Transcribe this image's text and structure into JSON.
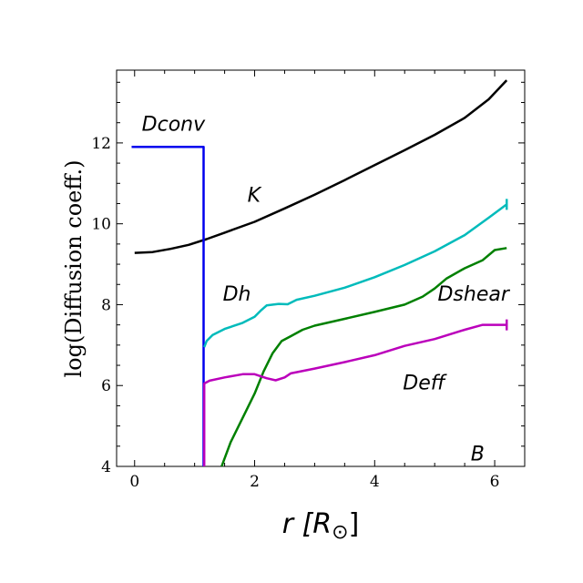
{
  "chart_data": {
    "type": "line",
    "title": "",
    "xlabel": "r [R",
    "xlabel_subscript": "⊙",
    "xlabel_close": "]",
    "ylabel": "log(Diffusion coeff.)",
    "xlim": [
      -0.3,
      6.5
    ],
    "ylim": [
      4,
      13.8
    ],
    "x_ticks": [
      0,
      2,
      4,
      6
    ],
    "x_tick_labels": [
      "0",
      "2",
      "4",
      "6"
    ],
    "y_ticks": [
      4,
      6,
      8,
      10,
      12
    ],
    "y_tick_labels": [
      "4",
      "6",
      "8",
      "10",
      "12"
    ],
    "grid": false,
    "legend": "none",
    "annotations": [
      {
        "text": "Dconv",
        "x": 0.12,
        "y": 12.3
      },
      {
        "text": "K",
        "x": 1.88,
        "y": 10.55
      },
      {
        "text": "Dh",
        "x": 1.47,
        "y": 8.1
      },
      {
        "text": "Dshear",
        "x": 5.05,
        "y": 8.1
      },
      {
        "text": "Deff",
        "x": 4.47,
        "y": 5.9
      },
      {
        "text": "B",
        "x": 5.6,
        "y": 4.15
      }
    ],
    "series": [
      {
        "name": "K",
        "color": "#000000",
        "points": [
          [
            0,
            9.28
          ],
          [
            0.3,
            9.3
          ],
          [
            0.6,
            9.38
          ],
          [
            0.9,
            9.48
          ],
          [
            1.2,
            9.62
          ],
          [
            1.5,
            9.78
          ],
          [
            2.0,
            10.05
          ],
          [
            2.5,
            10.38
          ],
          [
            3.0,
            10.72
          ],
          [
            3.5,
            11.08
          ],
          [
            4.0,
            11.45
          ],
          [
            4.5,
            11.82
          ],
          [
            5.0,
            12.2
          ],
          [
            5.5,
            12.62
          ],
          [
            5.9,
            13.08
          ],
          [
            6.2,
            13.55
          ]
        ]
      },
      {
        "name": "Dconv",
        "color": "#0000ee",
        "points": [
          [
            -0.05,
            11.9
          ],
          [
            1.15,
            11.9
          ],
          [
            1.15,
            7.05
          ],
          [
            1.15,
            4.0
          ]
        ]
      },
      {
        "name": "Dh",
        "color": "#00bbbb",
        "points": [
          [
            1.16,
            6.95
          ],
          [
            1.2,
            7.1
          ],
          [
            1.3,
            7.25
          ],
          [
            1.5,
            7.4
          ],
          [
            1.8,
            7.55
          ],
          [
            2.0,
            7.7
          ],
          [
            2.1,
            7.85
          ],
          [
            2.2,
            7.98
          ],
          [
            2.4,
            8.02
          ],
          [
            2.55,
            8.01
          ],
          [
            2.7,
            8.12
          ],
          [
            3.0,
            8.22
          ],
          [
            3.5,
            8.42
          ],
          [
            4.0,
            8.68
          ],
          [
            4.5,
            8.98
          ],
          [
            5.0,
            9.32
          ],
          [
            5.5,
            9.72
          ],
          [
            5.9,
            10.15
          ],
          [
            6.2,
            10.48
          ]
        ]
      },
      {
        "name": "Dshear",
        "color": "#008000",
        "points": [
          [
            1.45,
            4.0
          ],
          [
            1.6,
            4.6
          ],
          [
            1.8,
            5.2
          ],
          [
            2.0,
            5.8
          ],
          [
            2.15,
            6.35
          ],
          [
            2.3,
            6.8
          ],
          [
            2.45,
            7.1
          ],
          [
            2.6,
            7.22
          ],
          [
            2.8,
            7.38
          ],
          [
            3.0,
            7.48
          ],
          [
            3.5,
            7.65
          ],
          [
            4.0,
            7.82
          ],
          [
            4.5,
            8.0
          ],
          [
            4.8,
            8.2
          ],
          [
            5.0,
            8.4
          ],
          [
            5.2,
            8.65
          ],
          [
            5.5,
            8.9
          ],
          [
            5.8,
            9.1
          ],
          [
            6.0,
            9.35
          ],
          [
            6.2,
            9.4
          ]
        ]
      },
      {
        "name": "Deff",
        "color": "#bb00bb",
        "points": [
          [
            1.16,
            4.0
          ],
          [
            1.16,
            6.05
          ],
          [
            1.25,
            6.12
          ],
          [
            1.5,
            6.2
          ],
          [
            1.8,
            6.28
          ],
          [
            2.0,
            6.28
          ],
          [
            2.2,
            6.18
          ],
          [
            2.35,
            6.13
          ],
          [
            2.5,
            6.2
          ],
          [
            2.6,
            6.3
          ],
          [
            3.0,
            6.42
          ],
          [
            3.5,
            6.58
          ],
          [
            4.0,
            6.75
          ],
          [
            4.5,
            6.98
          ],
          [
            5.0,
            7.15
          ],
          [
            5.5,
            7.38
          ],
          [
            5.8,
            7.5
          ],
          [
            6.2,
            7.5
          ]
        ]
      }
    ]
  }
}
